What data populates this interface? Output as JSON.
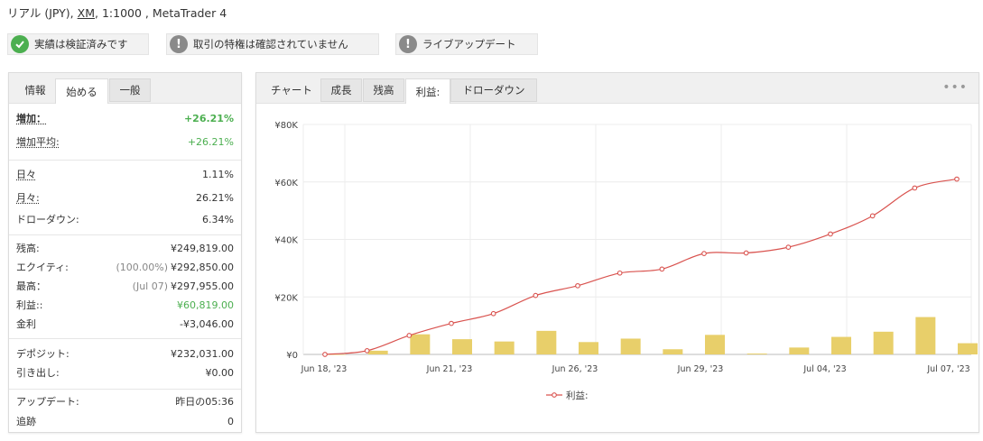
{
  "header": {
    "title_before": "リアル (JPY), ",
    "broker": "XM",
    "title_after": ", 1:1000 , MetaTrader 4"
  },
  "badges": [
    {
      "label": "実績は検証済みです",
      "icon": "check-icon"
    },
    {
      "label": "取引の特権は確認されていません",
      "icon": "exclamation-icon"
    },
    {
      "label": "ライブアップデート",
      "icon": "exclamation-icon"
    }
  ],
  "left_tabs": [
    "情報",
    "始める",
    "一般"
  ],
  "stats": {
    "gain_label": "増加：",
    "gain_value": "+26.21%",
    "abs_gain_label": "増加平均:",
    "abs_gain_value": "+26.21%",
    "daily_label": "日々",
    "daily_value": "1.11%",
    "monthly_label": "月々:",
    "monthly_value": "26.21%",
    "drawdown_label": "ドローダウン:",
    "drawdown_value": "6.34%",
    "balance_label": "残高:",
    "balance_value": "¥249,819.00",
    "equity_label": "エクイティ:",
    "equity_pct": "(100.00%)",
    "equity_value": "¥292,850.00",
    "highest_label": "最高：",
    "highest_date": "(Jul 07)",
    "highest_value": "¥297,955.00",
    "profit_label": "利益::",
    "profit_value": "¥60,819.00",
    "interest_label": "金利",
    "interest_value": "-¥3,046.00",
    "deposits_label": "デポジット:",
    "deposits_value": "¥232,031.00",
    "withdrawals_label": "引き出し:",
    "withdrawals_value": "¥0.00",
    "updated_label": "アップデート:",
    "updated_value": "昨日の05:36",
    "tracking_label": "追跡",
    "tracking_value": "0"
  },
  "right_tabs": [
    "チャート",
    "成長",
    "残高",
    "利益:",
    "ドローダウン"
  ],
  "more_label": "•••",
  "colors": {
    "line": "#d9534f",
    "bar": "#e8cf6a",
    "green": "#4caf50"
  },
  "chart_data": {
    "type": "bar+line",
    "y_ticks": [
      "¥80K",
      "¥60K",
      "¥40K",
      "¥20K",
      "¥0"
    ],
    "ylim": [
      0,
      80000
    ],
    "x_ticks": [
      "Jun 18, '23",
      "Jun 21, '23",
      "Jun 26, '23",
      "Jun 29, '23",
      "Jul 04, '23",
      "Jul 07, '23"
    ],
    "legend": "利益:",
    "bar_values": [
      0,
      1300,
      7000,
      5300,
      4500,
      8200,
      4300,
      5500,
      1800,
      6800,
      300,
      2400,
      6100,
      7900,
      13000,
      3900
    ],
    "line_values": [
      0,
      1300,
      6600,
      10800,
      14200,
      20500,
      23900,
      28300,
      29700,
      35100,
      35300,
      37300,
      41900,
      48200,
      57900,
      61000
    ]
  }
}
